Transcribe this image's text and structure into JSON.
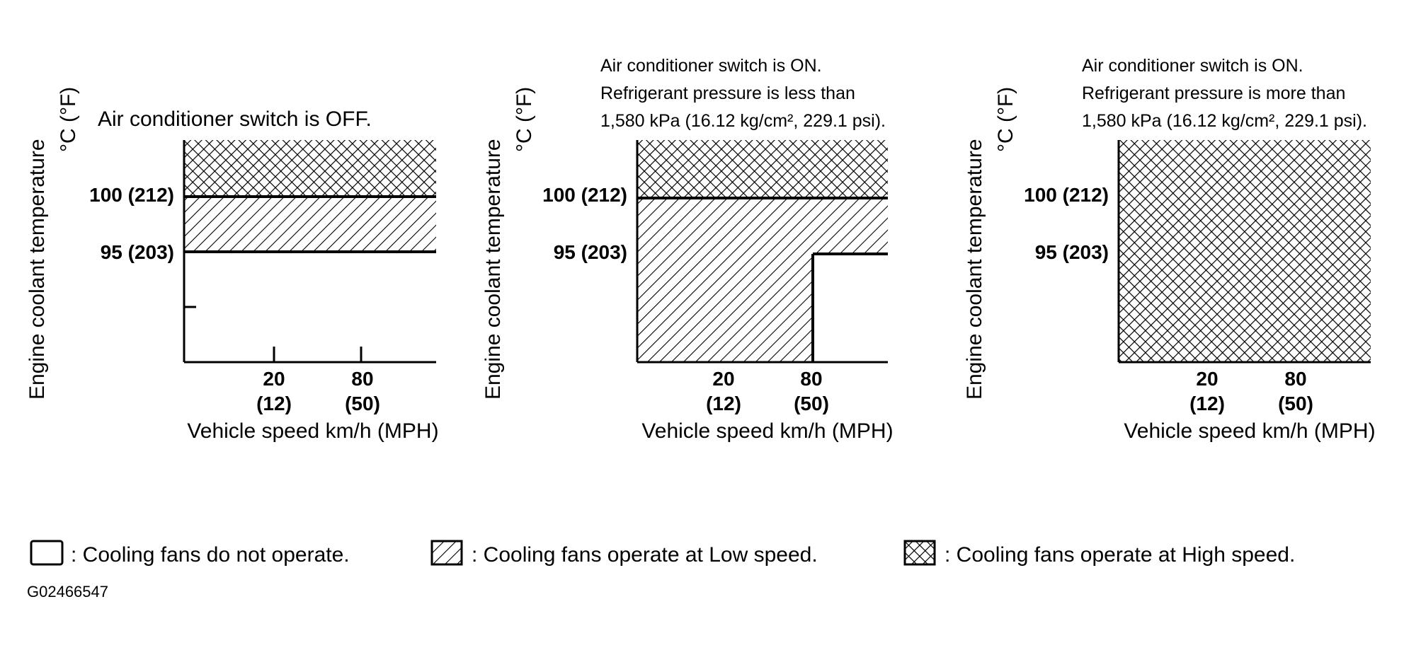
{
  "charts": [
    {
      "condition_lines": [
        "Air conditioner switch is OFF."
      ],
      "y_axis_label": "Engine coolant temperature",
      "y_axis_unit": "°C (°F)",
      "y_ticks": [
        "100 (212)",
        "95 (203)"
      ],
      "x_ticks": [
        {
          "kmh": "20",
          "mph": "(12)"
        },
        {
          "kmh": "80",
          "mph": "(50)"
        }
      ],
      "x_axis_label": "Vehicle speed km/h (MPH)",
      "zones": [
        {
          "above_celsius": 100,
          "fan": "high"
        },
        {
          "from_celsius": 95,
          "to_celsius": 100,
          "fan": "low"
        },
        {
          "below_celsius": 95,
          "fan": "none"
        }
      ]
    },
    {
      "condition_lines": [
        "Air conditioner switch is ON.",
        "Refrigerant pressure is less than",
        "1,580 kPa (16.12 kg/cm², 229.1 psi)."
      ],
      "y_axis_label": "Engine coolant temperature",
      "y_axis_unit": "°C (°F)",
      "y_ticks": [
        "100 (212)",
        "95 (203)"
      ],
      "x_ticks": [
        {
          "kmh": "20",
          "mph": "(12)"
        },
        {
          "kmh": "80",
          "mph": "(50)"
        }
      ],
      "x_axis_label": "Vehicle speed km/h (MPH)",
      "zones": [
        {
          "above_celsius": 100,
          "fan": "high"
        },
        {
          "from_celsius": 95,
          "to_celsius": 100,
          "fan": "low"
        },
        {
          "below_celsius": 95,
          "below_speed_kmh": 80,
          "fan": "low"
        },
        {
          "below_celsius": 95,
          "above_speed_kmh": 80,
          "fan": "none"
        }
      ]
    },
    {
      "condition_lines": [
        "Air conditioner switch is ON.",
        "Refrigerant pressure is more than",
        "1,580 kPa (16.12 kg/cm², 229.1 psi)."
      ],
      "y_axis_label": "Engine coolant temperature",
      "y_axis_unit": "°C (°F)",
      "y_ticks": [
        "100 (212)",
        "95 (203)"
      ],
      "x_ticks": [
        {
          "kmh": "20",
          "mph": "(12)"
        },
        {
          "kmh": "80",
          "mph": "(50)"
        }
      ],
      "x_axis_label": "Vehicle speed km/h (MPH)",
      "zones": [
        {
          "all": true,
          "fan": "high"
        }
      ]
    }
  ],
  "legend": [
    {
      "pattern": "empty",
      "text": ": Cooling fans do not operate."
    },
    {
      "pattern": "hatch",
      "text": ": Cooling fans operate at Low speed."
    },
    {
      "pattern": "crosshatch",
      "text": ": Cooling fans operate at High speed."
    }
  ],
  "figure_id": "G02466547"
}
